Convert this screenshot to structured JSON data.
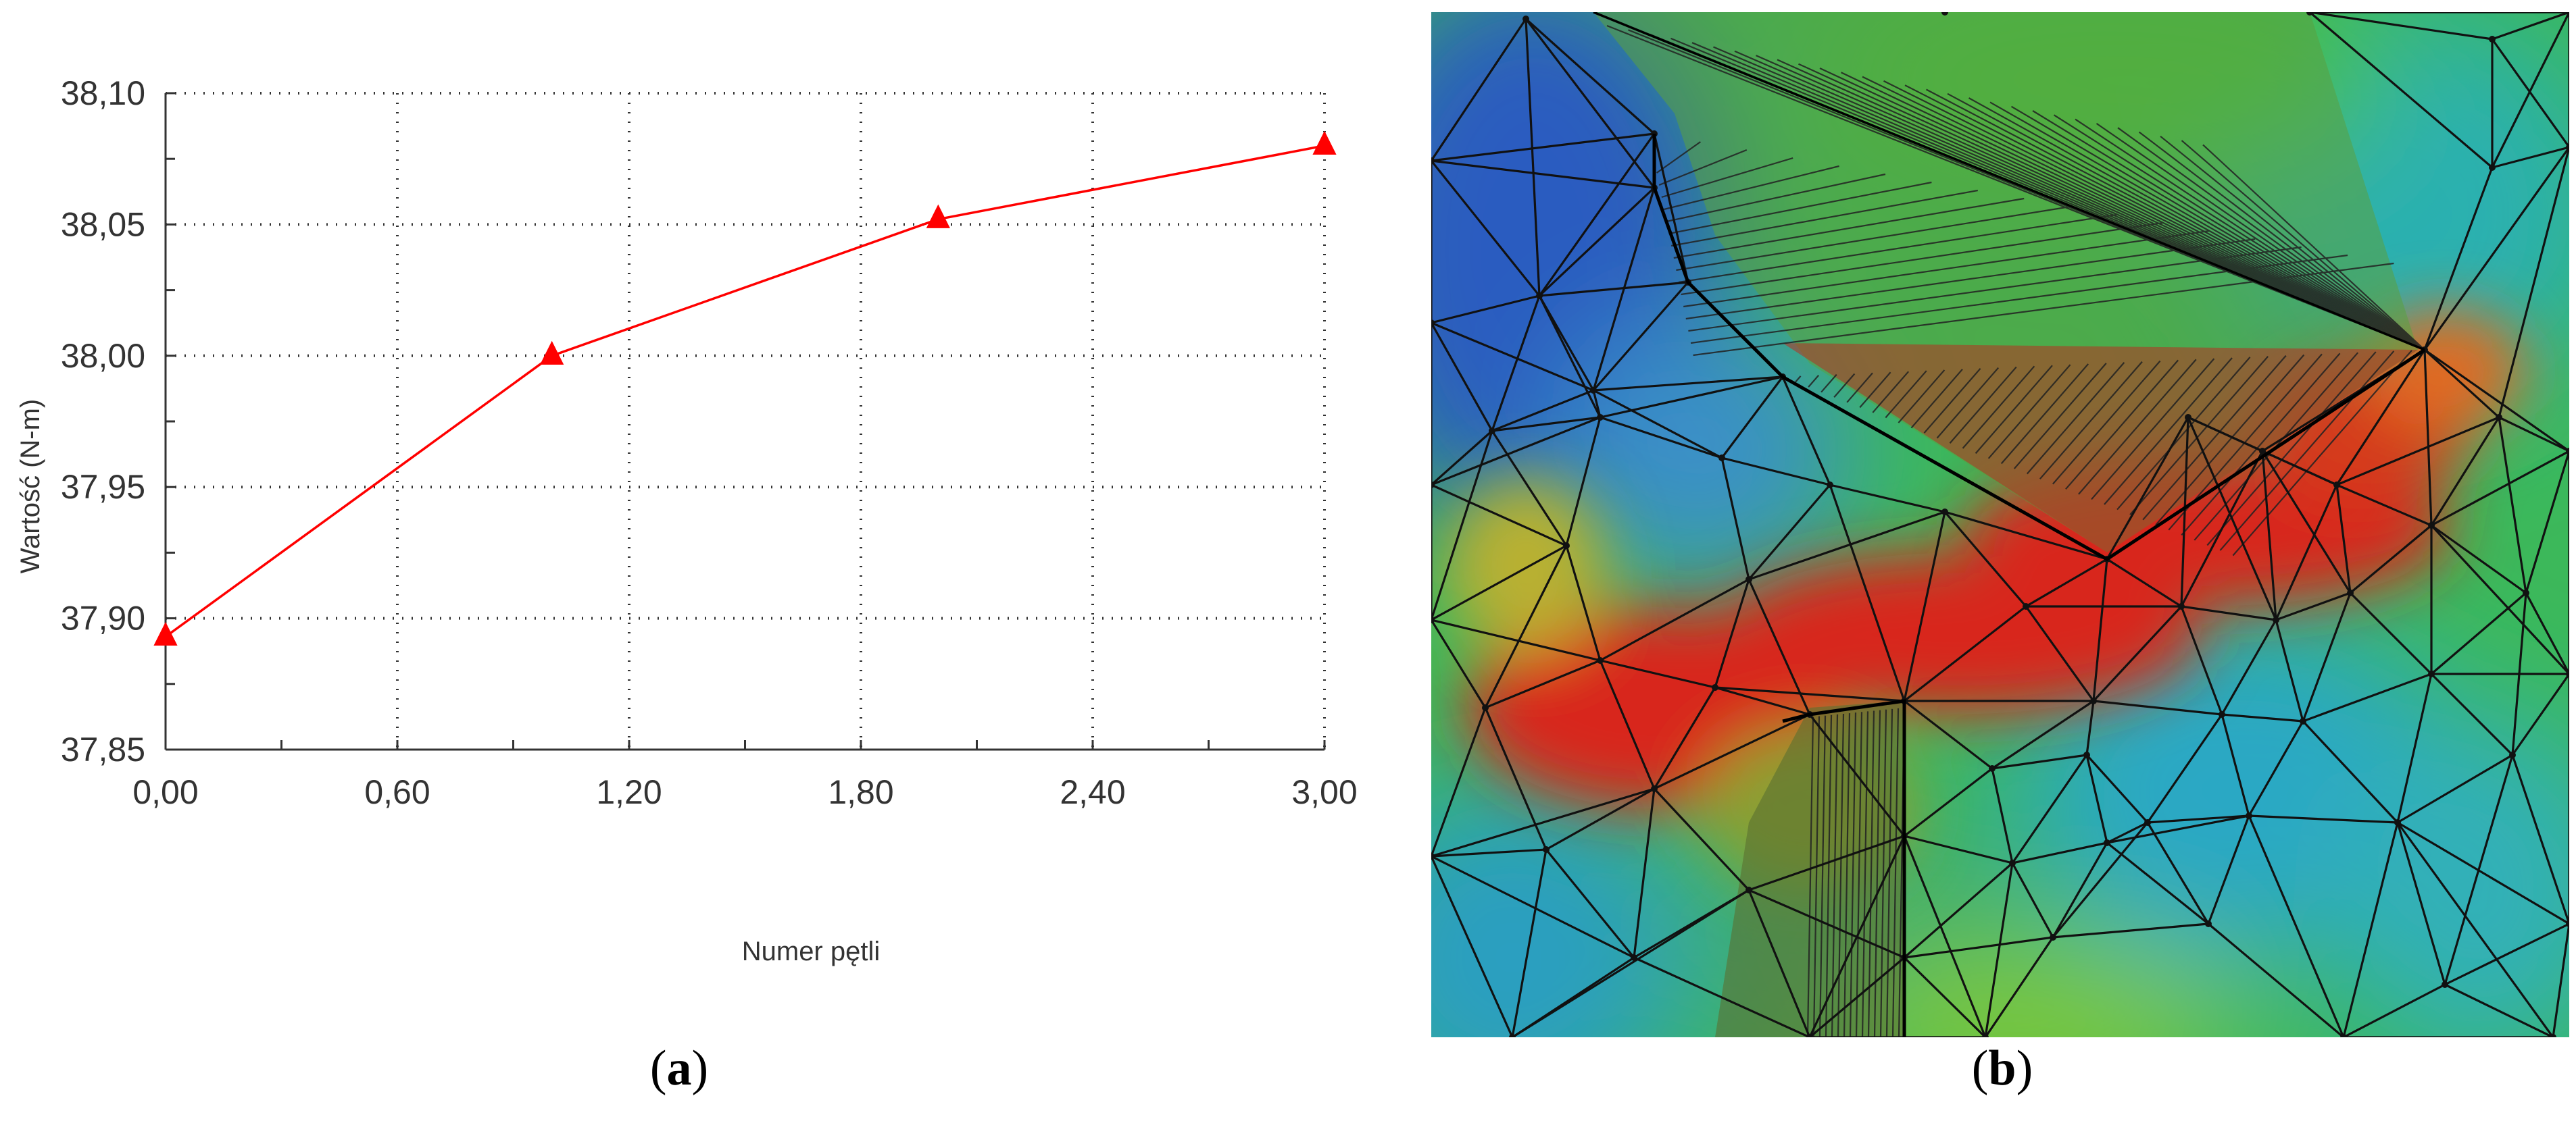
{
  "chart_data": {
    "type": "line",
    "xlabel": "Numer pętli",
    "ylabel": "Wartość (N-m)",
    "xlim": [
      0,
      3
    ],
    "ylim": [
      37.85,
      38.1
    ],
    "x_ticks": [
      "0,00",
      "0,60",
      "1,20",
      "1,80",
      "2,40",
      "3,00"
    ],
    "x_tick_values": [
      0,
      0.6,
      1.2,
      1.8,
      2.4,
      3.0
    ],
    "y_ticks": [
      "38,10",
      "38,05",
      "38,00",
      "37,95",
      "37,90",
      "37,85"
    ],
    "y_tick_values": [
      38.1,
      38.05,
      38.0,
      37.95,
      37.9,
      37.85
    ],
    "grid": true,
    "series": [
      {
        "x": [
          0,
          1,
          2,
          3
        ],
        "values": [
          37.893,
          38.0,
          38.052,
          38.08
        ],
        "color": "#ff0000",
        "marker": "triangle"
      }
    ]
  },
  "mesh_image": {
    "description_colors": [
      "#1f4fb8",
      "#2aa0c0",
      "#3cc060",
      "#7acb30",
      "#d02a20"
    ]
  },
  "labels": {
    "a_open": "(",
    "a_letter": "a",
    "a_close": ")",
    "b_open": "(",
    "b_letter": "b",
    "b_close": ")"
  }
}
